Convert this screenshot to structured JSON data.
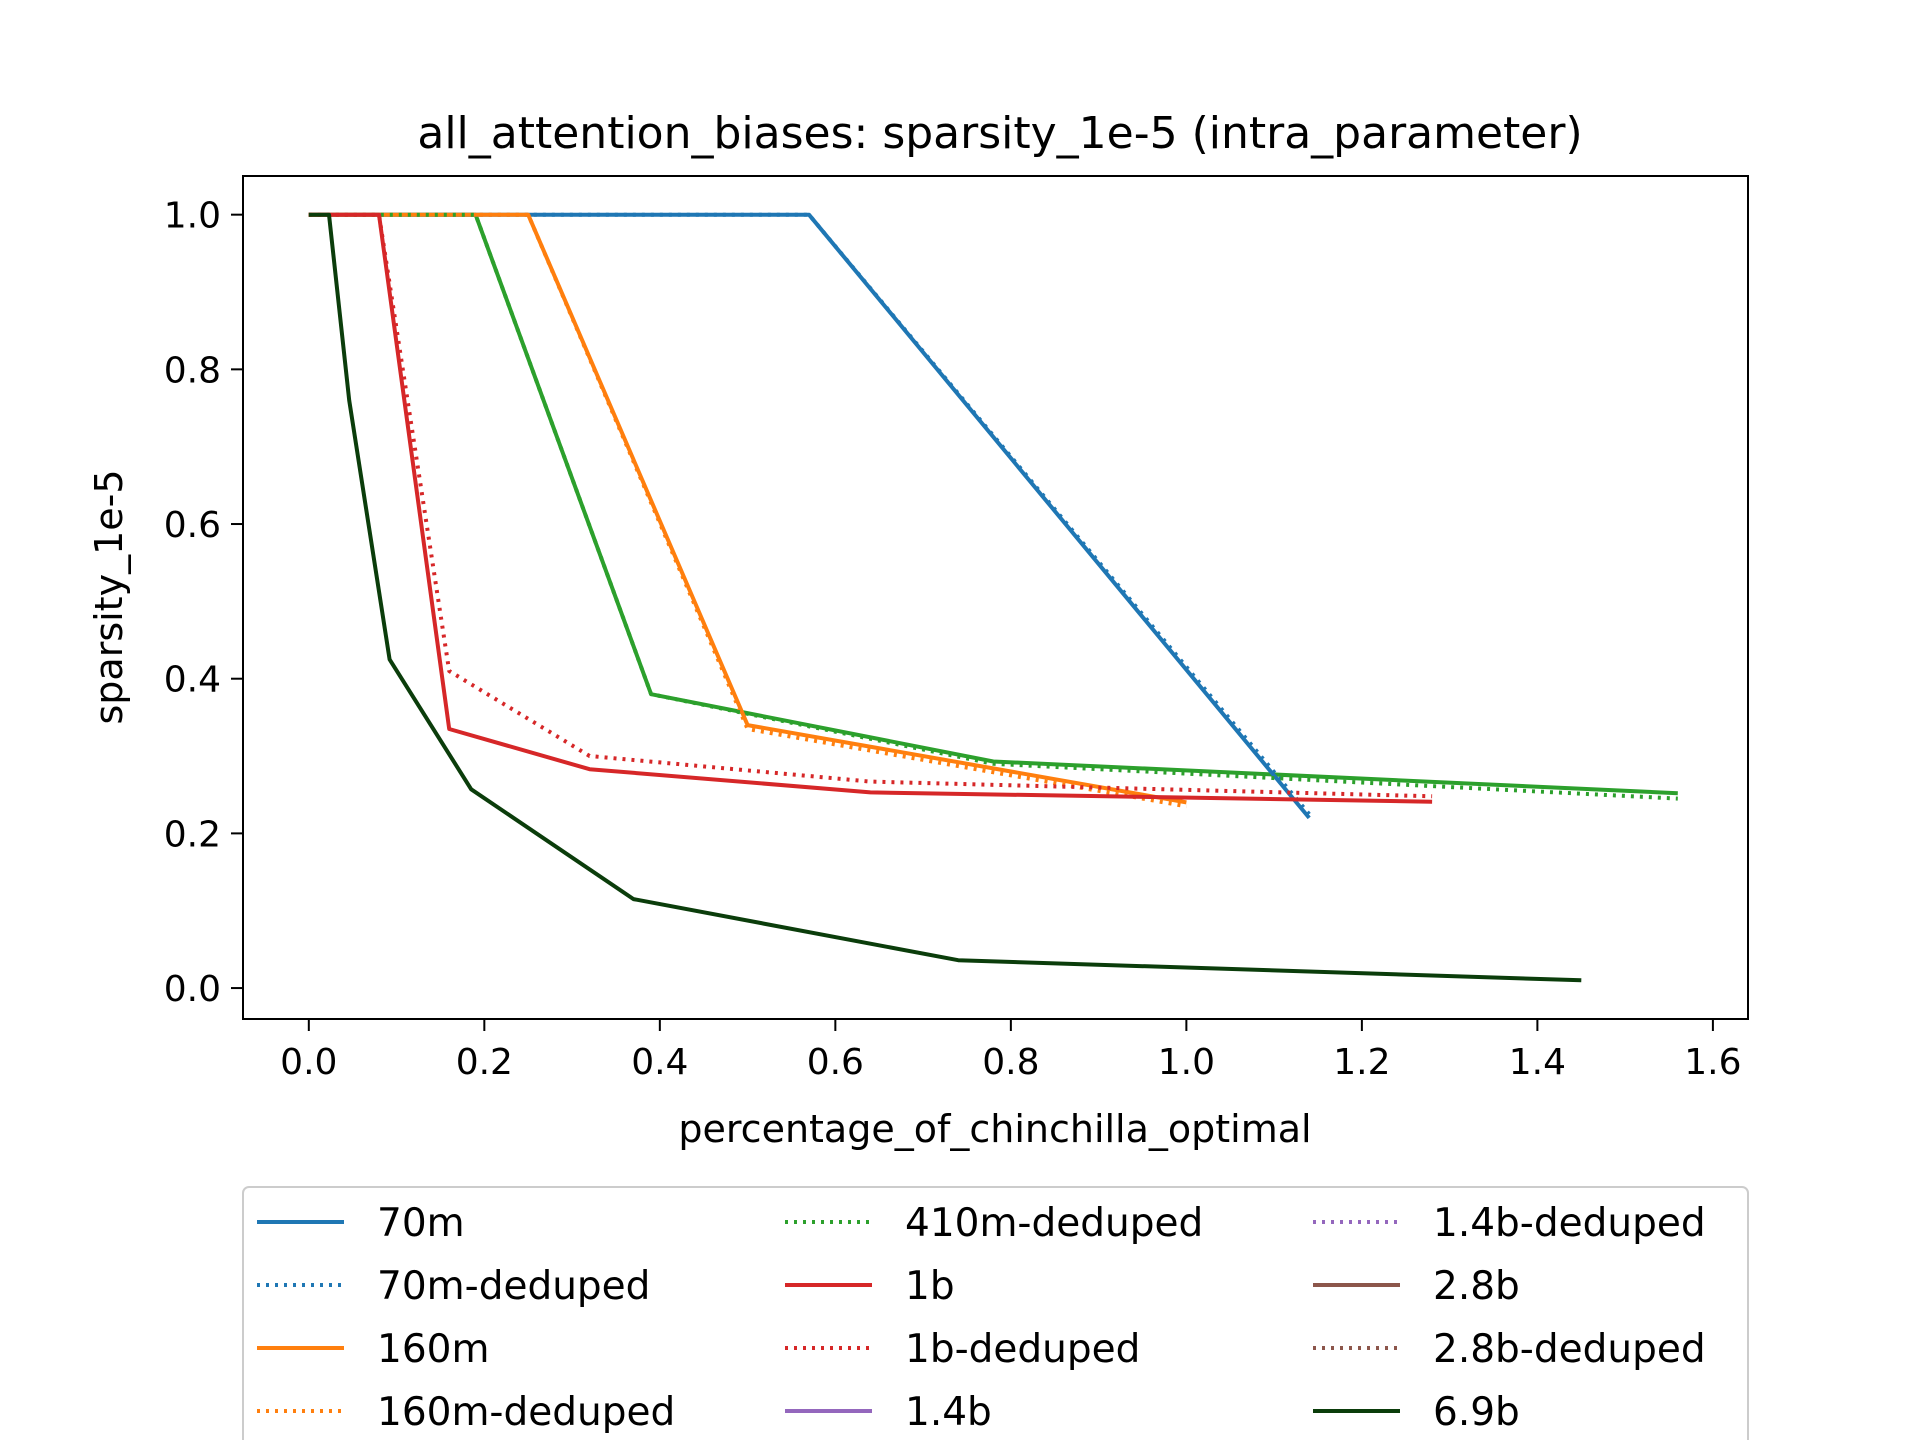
{
  "chart_data": {
    "type": "line",
    "title": "all_attention_biases: sparsity_1e-5 (intra_parameter)",
    "xlabel": "percentage_of_chinchilla_optimal",
    "ylabel": "sparsity_1e-5",
    "xlim": [
      -0.075,
      1.64
    ],
    "ylim": [
      -0.04,
      1.05
    ],
    "xticks": [
      "0.0",
      "0.2",
      "0.4",
      "0.6",
      "0.8",
      "1.0",
      "1.2",
      "1.4",
      "1.6"
    ],
    "yticks": [
      "0.0",
      "0.2",
      "0.4",
      "0.6",
      "0.8",
      "1.0"
    ],
    "grid": false,
    "legend_position": "bottom",
    "legend_columns": 3,
    "series": [
      {
        "name": "70m",
        "color": "#1f77b4",
        "style": "solid",
        "x": [
          0.0,
          0.57,
          1.14
        ],
        "y": [
          1.0,
          1.0,
          0.22
        ]
      },
      {
        "name": "70m-deduped",
        "color": "#1f77b4",
        "style": "dotted",
        "x": [
          0.0,
          0.57,
          1.14
        ],
        "y": [
          1.0,
          1.0,
          0.225
        ]
      },
      {
        "name": "160m",
        "color": "#ff7f0e",
        "style": "solid",
        "x": [
          0.0,
          0.25,
          0.5,
          1.0
        ],
        "y": [
          1.0,
          1.0,
          0.34,
          0.24
        ]
      },
      {
        "name": "160m-deduped",
        "color": "#ff7f0e",
        "style": "dotted",
        "x": [
          0.0,
          0.25,
          0.5,
          1.0
        ],
        "y": [
          1.0,
          1.0,
          0.335,
          0.235
        ]
      },
      {
        "name": "410m-deduped",
        "color": "#2ca02c",
        "style": "dotted",
        "x": [
          0.0,
          0.19,
          0.39,
          0.78,
          1.56
        ],
        "y": [
          1.0,
          1.0,
          0.38,
          0.29,
          0.245
        ]
      },
      {
        "name": "1b",
        "color": "#d62728",
        "style": "solid",
        "x": [
          0.0,
          0.08,
          0.16,
          0.32,
          0.64,
          1.28
        ],
        "y": [
          1.0,
          1.0,
          0.335,
          0.283,
          0.253,
          0.241
        ]
      },
      {
        "name": "1b-deduped",
        "color": "#d62728",
        "style": "dotted",
        "x": [
          0.0,
          0.08,
          0.16,
          0.32,
          0.64,
          1.28
        ],
        "y": [
          1.0,
          1.0,
          0.41,
          0.3,
          0.267,
          0.248
        ]
      },
      {
        "name": "1.4b",
        "color": "#9467bd",
        "style": "solid",
        "x": [],
        "y": []
      },
      {
        "name": "1.4b-deduped",
        "color": "#9467bd",
        "style": "dotted",
        "x": [],
        "y": []
      },
      {
        "name": "2.8b",
        "color": "#8c564b",
        "style": "solid",
        "x": [],
        "y": []
      },
      {
        "name": "2.8b-deduped",
        "color": "#8c564b",
        "style": "dotted",
        "x": [],
        "y": []
      },
      {
        "name": "6.9b",
        "color": "#0b3d0b",
        "style": "solid",
        "x": [
          0.0,
          0.023,
          0.046,
          0.092,
          0.185,
          0.37,
          0.74,
          1.45
        ],
        "y": [
          1.0,
          1.0,
          0.76,
          0.425,
          0.257,
          0.115,
          0.036,
          0.01
        ]
      }
    ],
    "extra_series_unlisted": {
      "color": "#2ca02c",
      "style": "solid",
      "x": [
        0.0,
        0.19,
        0.39,
        0.78,
        1.56
      ],
      "y": [
        1.0,
        1.0,
        0.38,
        0.293,
        0.252
      ]
    }
  }
}
